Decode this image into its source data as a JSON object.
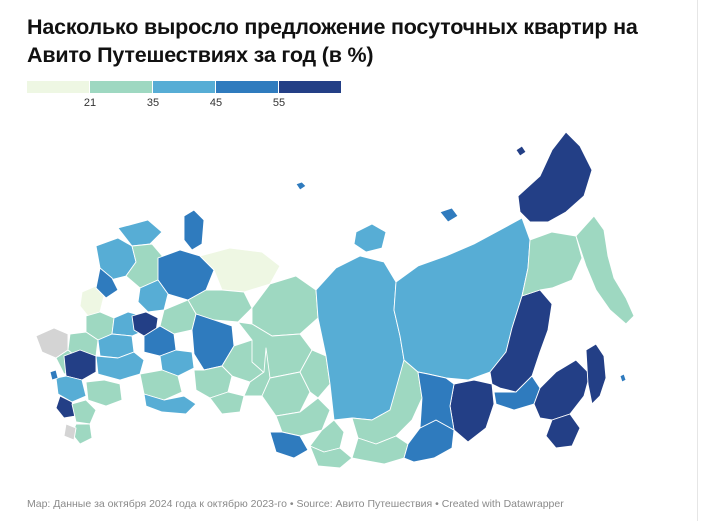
{
  "title": "Насколько выросло предложение посуточных квартир на Авито Путешествиях за год (в %)",
  "legend": {
    "colors": [
      "#eef7e3",
      "#9ed8c1",
      "#57add5",
      "#2f7bbe",
      "#233f86"
    ],
    "ticks": [
      "21",
      "35",
      "45",
      "55"
    ]
  },
  "footer": "Map: Данные за октября 2024 года к октябрю 2023-го • Source: Авито Путешествия • Created with Datawrapper",
  "map": {
    "no_data_color": "#d4d4d4"
  }
}
